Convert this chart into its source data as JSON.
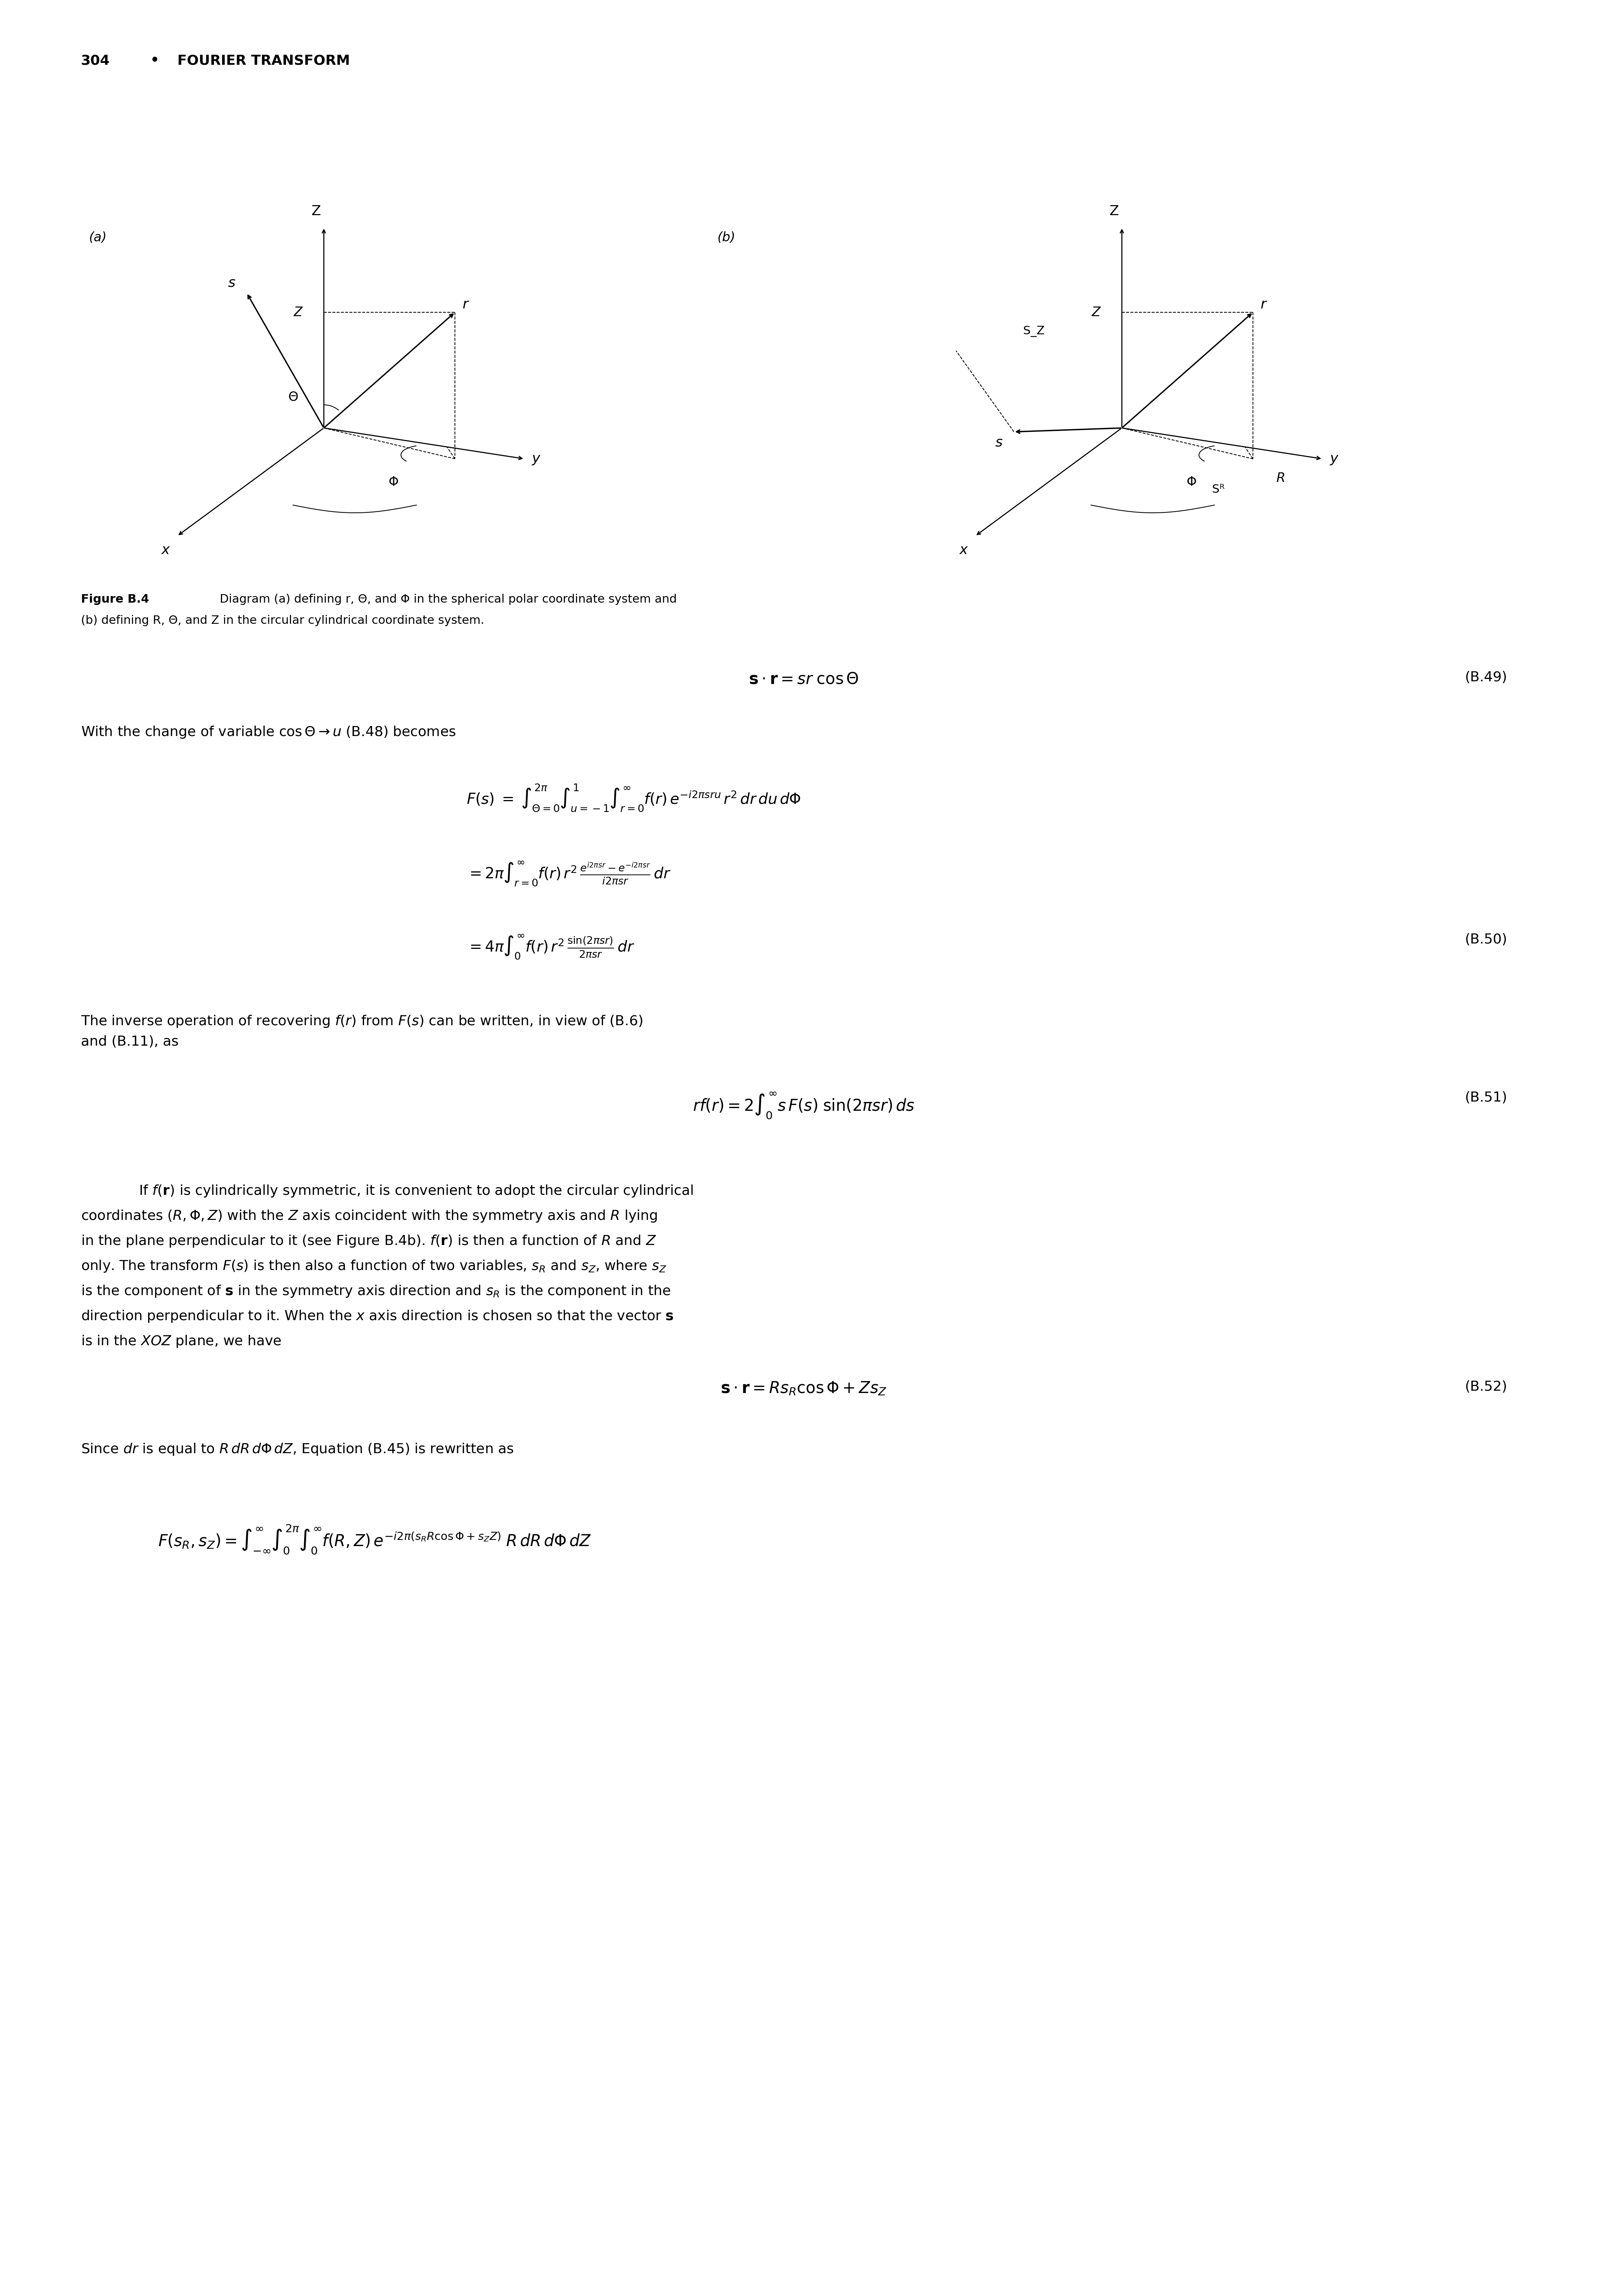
{
  "page_number": "304",
  "chapter_title": "FOURIER TRANSFORM",
  "fig_label": "(a)",
  "fig_label_b": "(b)",
  "figure_caption": "Figure B.4  Diagram (a) defining r, Θ, and Φ in the spherical polar coordinate system and\n(b) defining R, Θ, and Z in the circular cylindrical coordinate system.",
  "eq_B49_label": "(B.49)",
  "eq_B49": "s · r = sr  cos Θ",
  "text_change": "With the change of variable cos Θ → u (B.48) becomes",
  "eq_B50_label": "(B.50)",
  "eq_B51_label": "(B.51)",
  "eq_B51": "rf(r) = 2",
  "text_inverse": "The inverse operation of recovering f(r) from F(s) can be written, in view of (B.6)\nand (B.11), as",
  "text_cylindrical": "If f(r) is cylindrically symmetric, it is convenient to adopt the circular cylindrical\ncoordinates (R, Φ, Z) with the Z axis coincident with the symmetry axis and R lying\nin the plane perpendicular to it (see Figure B.4b). f(r) is then a function of R and Z\nonly. The transform F(s) is then also a function of two variables, s_R and s_Z, where s_Z\nis the component of s in the symmetry axis direction and s_R is the component in the\ndirection perpendicular to it. When the x axis direction is chosen so that the vector s\nis in the XOZ plane, we have",
  "eq_B52_label": "(B.52)",
  "eq_B52": "s · r = Rs_R cos Φ + Zs_Z",
  "text_since": "Since dr is equal to R dR dΦ dZ, Equation (B.45) is rewritten as",
  "background_color": "#ffffff",
  "text_color": "#000000",
  "font_size_body": 22,
  "font_size_header": 20,
  "font_size_eq": 22,
  "font_size_caption": 20
}
